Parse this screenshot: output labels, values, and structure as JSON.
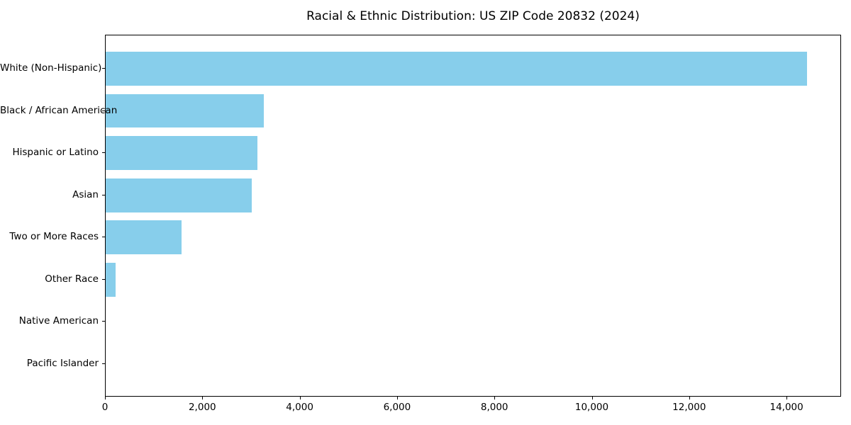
{
  "chart_data": {
    "type": "bar",
    "orientation": "horizontal",
    "title": "Racial & Ethnic Distribution: US ZIP Code 20832 (2024)",
    "categories": [
      "White (Non-Hispanic)",
      "Black / African American",
      "Hispanic or Latino",
      "Asian",
      "Two or More Races",
      "Other Race",
      "Native American",
      "Pacific Islander"
    ],
    "values": [
      14400,
      3250,
      3110,
      3000,
      1560,
      200,
      0,
      0
    ],
    "xlabel": "",
    "ylabel": "",
    "xlim": [
      0,
      15120
    ],
    "xticks": [
      0,
      2000,
      4000,
      6000,
      8000,
      10000,
      12000,
      14000
    ],
    "xtick_labels": [
      "0",
      "2,000",
      "4,000",
      "6,000",
      "8,000",
      "10,000",
      "12,000",
      "14,000"
    ],
    "bar_color": "#87CEEB",
    "axis_color": "#000000",
    "text_color": "#000000",
    "background": "#ffffff",
    "grid": false,
    "legend": null
  }
}
